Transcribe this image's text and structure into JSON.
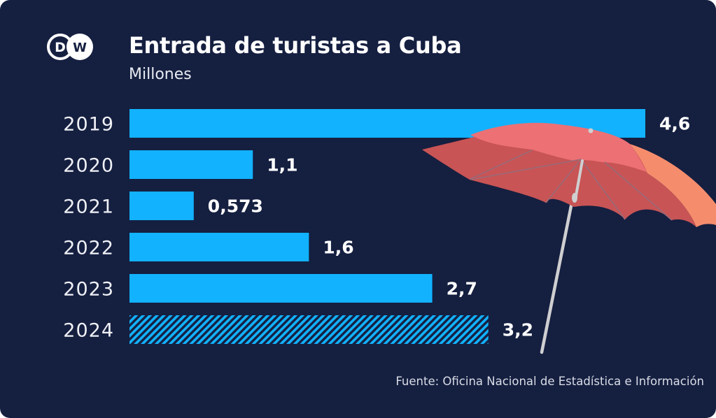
{
  "brand": {
    "logo_text": "DW"
  },
  "header": {
    "title": "Entrada de turistas a Cuba",
    "subtitle": "Millones"
  },
  "footer": {
    "source": "Fuente: Oficina Nacional de Estadística e Información"
  },
  "colors": {
    "background": "#151F40",
    "bar": "#12B2FF",
    "bar_hatch": "#12B2FF",
    "umbrella_top": "#EC7074",
    "umbrella_shade": "#C85455",
    "umbrella_side": "#F58D6D",
    "umbrella_pole": "#CFCFD1"
  },
  "decoration": {
    "illustration": "beach-umbrella"
  },
  "chart_data": {
    "type": "bar",
    "orientation": "horizontal",
    "title": "Entrada de turistas a Cuba",
    "subtitle": "Millones",
    "xlabel": "",
    "ylabel": "",
    "categories": [
      "2019",
      "2020",
      "2021",
      "2022",
      "2023",
      "2024"
    ],
    "values": [
      4.6,
      1.1,
      0.573,
      1.6,
      2.7,
      3.2
    ],
    "value_labels": [
      "4,6",
      "1,1",
      "0,573",
      "1,6",
      "2,7",
      "3,2"
    ],
    "hatched": [
      false,
      false,
      false,
      false,
      false,
      true
    ],
    "xlim": [
      0,
      4.6
    ],
    "grid": false,
    "legend": "none",
    "source": "Fuente: Oficina Nacional de Estadística e Información"
  }
}
